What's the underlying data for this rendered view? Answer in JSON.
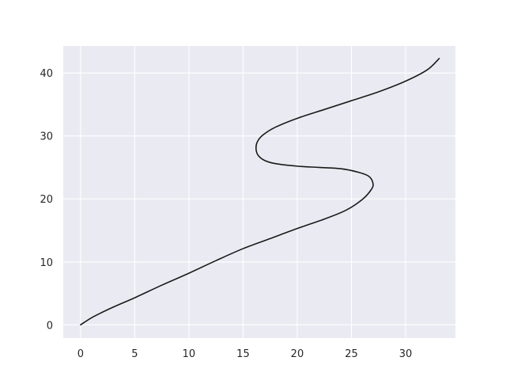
{
  "chart_data": {
    "type": "line",
    "title": "",
    "xlabel": "",
    "ylabel": "",
    "xlim": [
      -1.6,
      34.6
    ],
    "ylim": [
      -2.1,
      44.3
    ],
    "xticks": [
      0,
      5,
      10,
      15,
      20,
      25,
      30
    ],
    "yticks": [
      0,
      10,
      20,
      30,
      40
    ],
    "xtick_labels": [
      "0",
      "5",
      "10",
      "15",
      "20",
      "25",
      "30"
    ],
    "ytick_labels": [
      "0",
      "10",
      "20",
      "30",
      "40"
    ],
    "grid": true,
    "colors": {
      "background": "#eaeaf2",
      "grid": "#ffffff",
      "line": "#1a1a1a",
      "text": "#262626"
    },
    "series": [
      {
        "x": [
          0,
          1.2,
          3,
          5,
          7.5,
          10,
          12.5,
          15,
          17.5,
          20,
          22.5,
          24.5,
          26,
          26.8,
          27.0,
          26.6,
          25.5,
          24,
          22,
          20,
          18,
          17,
          16.4,
          16.2,
          16.3,
          16.8,
          18,
          20,
          22.5,
          25,
          27.5,
          30,
          32,
          33.1
        ],
        "y": [
          0,
          1.3,
          2.8,
          4.3,
          6.3,
          8.2,
          10.2,
          12.1,
          13.7,
          15.3,
          16.8,
          18.2,
          19.9,
          21.4,
          22.4,
          23.6,
          24.3,
          24.8,
          25.0,
          25.2,
          25.6,
          26.1,
          26.9,
          27.9,
          29.0,
          30.1,
          31.4,
          32.8,
          34.2,
          35.6,
          37.0,
          38.7,
          40.5,
          42.3
        ]
      }
    ]
  }
}
